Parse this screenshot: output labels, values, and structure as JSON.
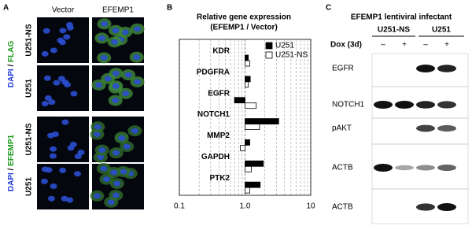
{
  "panel_a": {
    "label": "A",
    "columns": [
      "Vector",
      "EFEMP1"
    ],
    "rows": [
      "U251-NS",
      "U251",
      "U251-NS",
      "U251"
    ],
    "groups": [
      [
        "DAPI",
        "/",
        "FLAG"
      ],
      [
        "DAPI",
        "/",
        "EFEMP1"
      ]
    ]
  },
  "chart_data": {
    "type": "bar",
    "orientation": "horizontal",
    "panel_label": "B",
    "title": "Relative gene expression",
    "subtitle": "(EFEMP1 / Vector)",
    "categories": [
      "KDR",
      "PDGFRA",
      "EGFR",
      "NOTCH1",
      "MMP2",
      "GAPDH",
      "PTK2"
    ],
    "series": [
      {
        "name": "U251",
        "color": "#000000",
        "values": [
          1.12,
          1.2,
          0.69,
          3.25,
          1.18,
          1.9,
          1.7
        ]
      },
      {
        "name": "U251-NS",
        "color": "#ffffff",
        "values": [
          1.18,
          1.12,
          1.48,
          1.66,
          0.85,
          1.25,
          1.18
        ]
      }
    ],
    "xscale": "log",
    "xlim": [
      0.1,
      10
    ],
    "xticks": [
      0.1,
      {
        "value": 1,
        "label": "1.0"
      },
      10
    ],
    "bar_base": 1,
    "grid": true,
    "legend": "top-right"
  },
  "panel_c": {
    "label": "C",
    "title": "EFEMP1 lentiviral infectant",
    "cell_lines": [
      "U251-NS",
      "U251"
    ],
    "treatment": "Dox (3d)",
    "dox": [
      "–",
      "+",
      "–",
      "+"
    ],
    "rows": [
      "EGFR",
      "NOTCH1",
      "pAKT",
      "ACTB",
      "ACTB"
    ]
  }
}
